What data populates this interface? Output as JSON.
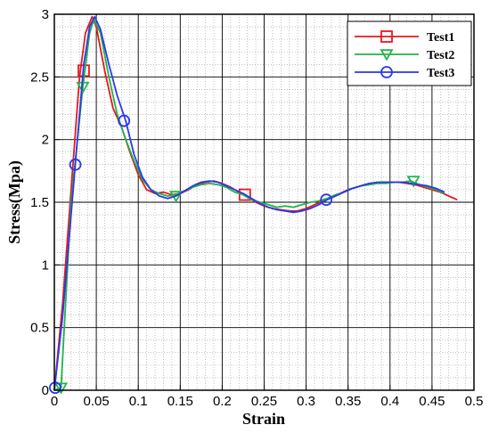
{
  "chart_data": {
    "type": "line",
    "xlabel": "Strain",
    "ylabel": "Stress(Mpa)",
    "xlim": [
      0,
      0.5
    ],
    "ylim": [
      0,
      3
    ],
    "xticks": [
      "0",
      "0.05",
      "0.1",
      "0.15",
      "0.2",
      "0.25",
      "0.3",
      "0.35",
      "0.4",
      "0.45",
      "0.5"
    ],
    "yticks": [
      "0",
      "0.5",
      "1",
      "1.5",
      "2",
      "2.5",
      "3"
    ],
    "grid": true,
    "minor_grid": true,
    "legend_position": "top-right",
    "series": [
      {
        "name": "Test1",
        "color": "#e8181e",
        "marker": "square",
        "x": [
          0,
          0.01,
          0.02,
          0.03,
          0.037,
          0.045,
          0.05,
          0.06,
          0.07,
          0.08,
          0.09,
          0.1,
          0.11,
          0.12,
          0.13,
          0.14,
          0.15,
          0.16,
          0.17,
          0.18,
          0.19,
          0.2,
          0.21,
          0.22,
          0.23,
          0.24,
          0.25,
          0.26,
          0.27,
          0.28,
          0.29,
          0.3,
          0.31,
          0.32,
          0.33,
          0.34,
          0.35,
          0.36,
          0.37,
          0.38,
          0.39,
          0.4,
          0.41,
          0.42,
          0.43,
          0.44,
          0.45,
          0.46,
          0.47,
          0.48
        ],
        "y": [
          0,
          0.7,
          1.6,
          2.5,
          2.85,
          2.98,
          2.9,
          2.55,
          2.25,
          2.1,
          1.9,
          1.72,
          1.6,
          1.57,
          1.58,
          1.56,
          1.57,
          1.6,
          1.64,
          1.66,
          1.67,
          1.65,
          1.62,
          1.58,
          1.54,
          1.5,
          1.47,
          1.45,
          1.44,
          1.43,
          1.43,
          1.45,
          1.48,
          1.51,
          1.54,
          1.57,
          1.6,
          1.62,
          1.64,
          1.65,
          1.66,
          1.66,
          1.66,
          1.65,
          1.64,
          1.62,
          1.6,
          1.58,
          1.55,
          1.52
        ],
        "marker_x": [
          0.035,
          0.227
        ],
        "marker_y": [
          2.55,
          1.56
        ]
      },
      {
        "name": "Test2",
        "color": "#22b34a",
        "marker": "triangle-down",
        "x": [
          0,
          0.008,
          0.02,
          0.034,
          0.042,
          0.047,
          0.055,
          0.065,
          0.075,
          0.085,
          0.095,
          0.105,
          0.115,
          0.125,
          0.135,
          0.145,
          0.155,
          0.165,
          0.175,
          0.185,
          0.195,
          0.205,
          0.215,
          0.225,
          0.235,
          0.245,
          0.255,
          0.265,
          0.275,
          0.285,
          0.295,
          0.305,
          0.315,
          0.325,
          0.335,
          0.345,
          0.355,
          0.365,
          0.375,
          0.385,
          0.395,
          0.405,
          0.415,
          0.425,
          0.435,
          0.445,
          0.455,
          0.465
        ],
        "y": [
          0,
          0.02,
          1.5,
          2.42,
          2.85,
          2.96,
          2.85,
          2.5,
          2.2,
          2.0,
          1.83,
          1.68,
          1.6,
          1.57,
          1.55,
          1.56,
          1.59,
          1.62,
          1.64,
          1.65,
          1.64,
          1.62,
          1.58,
          1.56,
          1.52,
          1.5,
          1.48,
          1.46,
          1.47,
          1.46,
          1.48,
          1.5,
          1.51,
          1.53,
          1.56,
          1.58,
          1.61,
          1.63,
          1.64,
          1.65,
          1.65,
          1.66,
          1.66,
          1.67,
          1.64,
          1.62,
          1.6,
          1.57
        ],
        "marker_x": [
          0.008,
          0.034,
          0.145,
          0.428
        ],
        "marker_y": [
          0.02,
          2.42,
          1.55,
          1.67
        ]
      },
      {
        "name": "Test3",
        "color": "#2a3ae8",
        "marker": "circle",
        "x": [
          0,
          0.01,
          0.025,
          0.035,
          0.042,
          0.048,
          0.055,
          0.065,
          0.075,
          0.085,
          0.095,
          0.105,
          0.115,
          0.125,
          0.135,
          0.145,
          0.155,
          0.165,
          0.175,
          0.185,
          0.195,
          0.205,
          0.215,
          0.225,
          0.235,
          0.245,
          0.255,
          0.265,
          0.275,
          0.285,
          0.295,
          0.305,
          0.315,
          0.325,
          0.335,
          0.345,
          0.355,
          0.365,
          0.375,
          0.385,
          0.395,
          0.405,
          0.415,
          0.425,
          0.435,
          0.445,
          0.455,
          0.465
        ],
        "y": [
          0,
          0.6,
          1.8,
          2.6,
          2.9,
          2.98,
          2.88,
          2.6,
          2.35,
          2.15,
          1.88,
          1.7,
          1.6,
          1.55,
          1.53,
          1.55,
          1.59,
          1.63,
          1.66,
          1.67,
          1.66,
          1.63,
          1.6,
          1.57,
          1.53,
          1.49,
          1.46,
          1.44,
          1.43,
          1.42,
          1.43,
          1.45,
          1.48,
          1.52,
          1.55,
          1.58,
          1.61,
          1.63,
          1.65,
          1.66,
          1.66,
          1.66,
          1.66,
          1.65,
          1.64,
          1.63,
          1.61,
          1.58
        ],
        "marker_x": [
          0.001,
          0.025,
          0.083,
          0.324
        ],
        "marker_y": [
          0.02,
          1.8,
          2.15,
          1.52
        ]
      }
    ]
  }
}
